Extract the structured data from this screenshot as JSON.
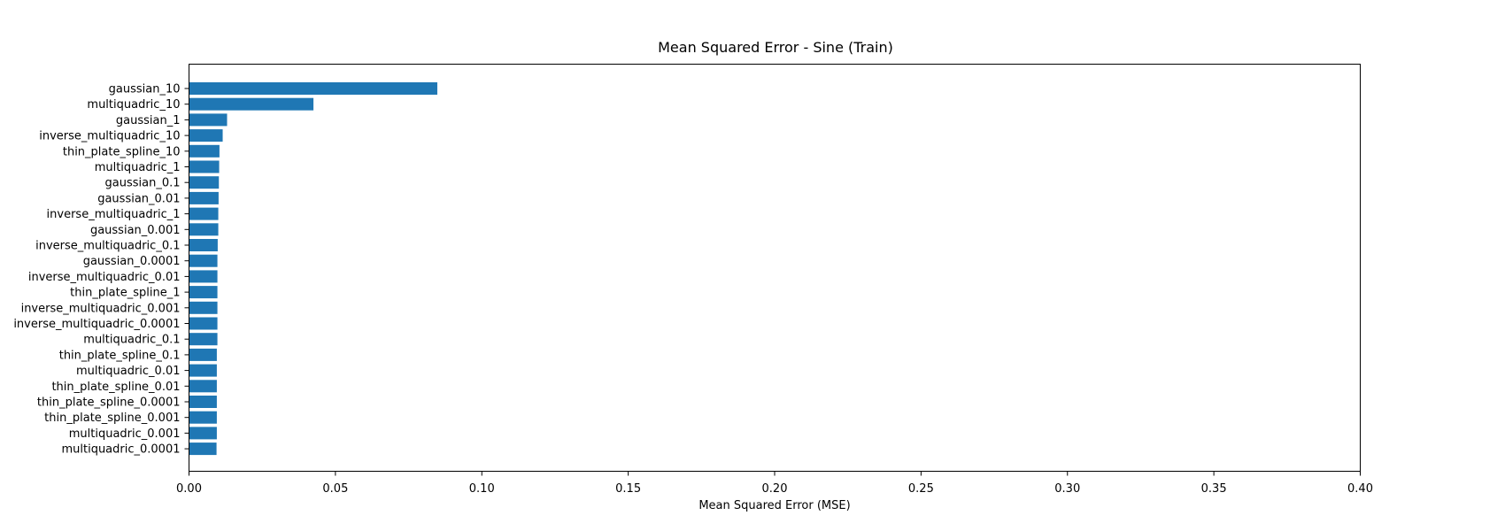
{
  "chart_data": {
    "type": "bar",
    "orientation": "horizontal",
    "title": "Mean Squared Error - Sine (Train)",
    "xlabel": "Mean Squared Error (MSE)",
    "ylabel": "",
    "xlim": [
      0,
      0.4
    ],
    "xticks": [
      "0.00",
      "0.05",
      "0.10",
      "0.15",
      "0.20",
      "0.25",
      "0.30",
      "0.35",
      "0.40"
    ],
    "grid": false,
    "bar_color": "#1f77b4",
    "categories": [
      "gaussian_10",
      "multiquadric_10",
      "gaussian_1",
      "inverse_multiquadric_10",
      "thin_plate_spline_10",
      "multiquadric_1",
      "gaussian_0.1",
      "gaussian_0.01",
      "inverse_multiquadric_1",
      "gaussian_0.001",
      "inverse_multiquadric_0.1",
      "gaussian_0.0001",
      "inverse_multiquadric_0.01",
      "thin_plate_spline_1",
      "inverse_multiquadric_0.001",
      "inverse_multiquadric_0.0001",
      "multiquadric_0.1",
      "thin_plate_spline_0.1",
      "multiquadric_0.01",
      "thin_plate_spline_0.01",
      "thin_plate_spline_0.0001",
      "thin_plate_spline_0.001",
      "multiquadric_0.001",
      "multiquadric_0.0001"
    ],
    "values": [
      0.0848,
      0.0425,
      0.013,
      0.0115,
      0.0104,
      0.0103,
      0.0102,
      0.0101,
      0.01,
      0.01,
      0.0098,
      0.0097,
      0.0097,
      0.0097,
      0.0097,
      0.0097,
      0.0097,
      0.0095,
      0.0095,
      0.0095,
      0.0095,
      0.0095,
      0.0095,
      0.0094
    ]
  }
}
